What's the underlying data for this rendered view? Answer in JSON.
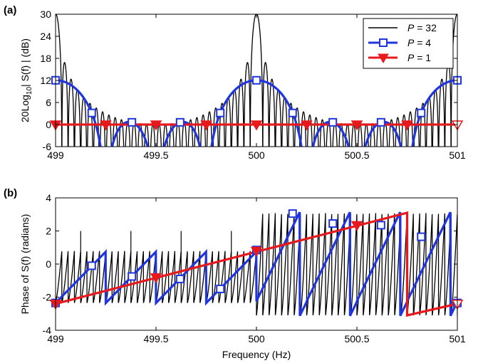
{
  "chart_data": [
    {
      "panel": "(a)",
      "type": "line",
      "xlabel": "",
      "ylabel_main": "20Log",
      "ylabel_sub": "10",
      "ylabel_rest": "| S(f) | (dB)",
      "xlim": [
        499,
        501
      ],
      "ylim": [
        -6,
        30
      ],
      "xticks": [
        "499",
        "499.5",
        "500",
        "500.5",
        "501"
      ],
      "yticks": [
        "-6",
        "0",
        "6",
        "12",
        "18",
        "24",
        "30"
      ],
      "legend": {
        "placement": "top-right",
        "entries": [
          {
            "prefix": "P",
            "suffix": " = 32"
          },
          {
            "prefix": "P",
            "suffix": " = 4"
          },
          {
            "prefix": "P",
            "suffix": " = 1"
          }
        ]
      },
      "series": [
        {
          "name": "P = 32",
          "color": "#000000",
          "marker": "none",
          "formula": "20*log10|sin(32*pi*x)/sin(pi*x)|"
        },
        {
          "name": "P = 4",
          "color": "#1f35e0",
          "marker": "square",
          "formula": "20*log10|sin(4*pi*x)/sin(pi*x)|",
          "marker_x": [
            499.0,
            499.18,
            499.38,
            499.62,
            499.82,
            500.0,
            500.18,
            500.38,
            500.62,
            500.82,
            501.0
          ]
        },
        {
          "name": "P = 1",
          "color": "#e8191c",
          "marker": "triangle-down",
          "formula": "0",
          "marker_x": [
            499.0,
            499.25,
            499.5,
            499.75,
            500.0,
            500.25,
            500.5,
            500.75,
            501.0
          ]
        }
      ]
    },
    {
      "panel": "(b)",
      "type": "line",
      "xlabel": "Frequency (Hz)",
      "ylabel": "Phase of S(f) (radians)",
      "xlim": [
        499,
        501
      ],
      "ylim": [
        -4,
        4
      ],
      "xticks": [
        "499",
        "499.5",
        "500",
        "500.5",
        "501"
      ],
      "yticks": [
        "-4",
        "-2",
        "0",
        "2",
        "4"
      ],
      "series": [
        {
          "name": "P = 32",
          "color": "#000000",
          "marker": "none"
        },
        {
          "name": "P = 4",
          "color": "#1f35e0",
          "marker": "square",
          "marker_x": [
            499.0,
            499.18,
            499.38,
            499.62,
            499.82,
            500.0,
            500.18,
            500.38,
            500.62,
            500.82,
            501.0
          ]
        },
        {
          "name": "P = 1",
          "color": "#e8191c",
          "marker": "triangle-down",
          "marker_x": [
            499.0,
            499.5,
            500.0,
            500.5,
            501.0
          ]
        }
      ]
    }
  ]
}
